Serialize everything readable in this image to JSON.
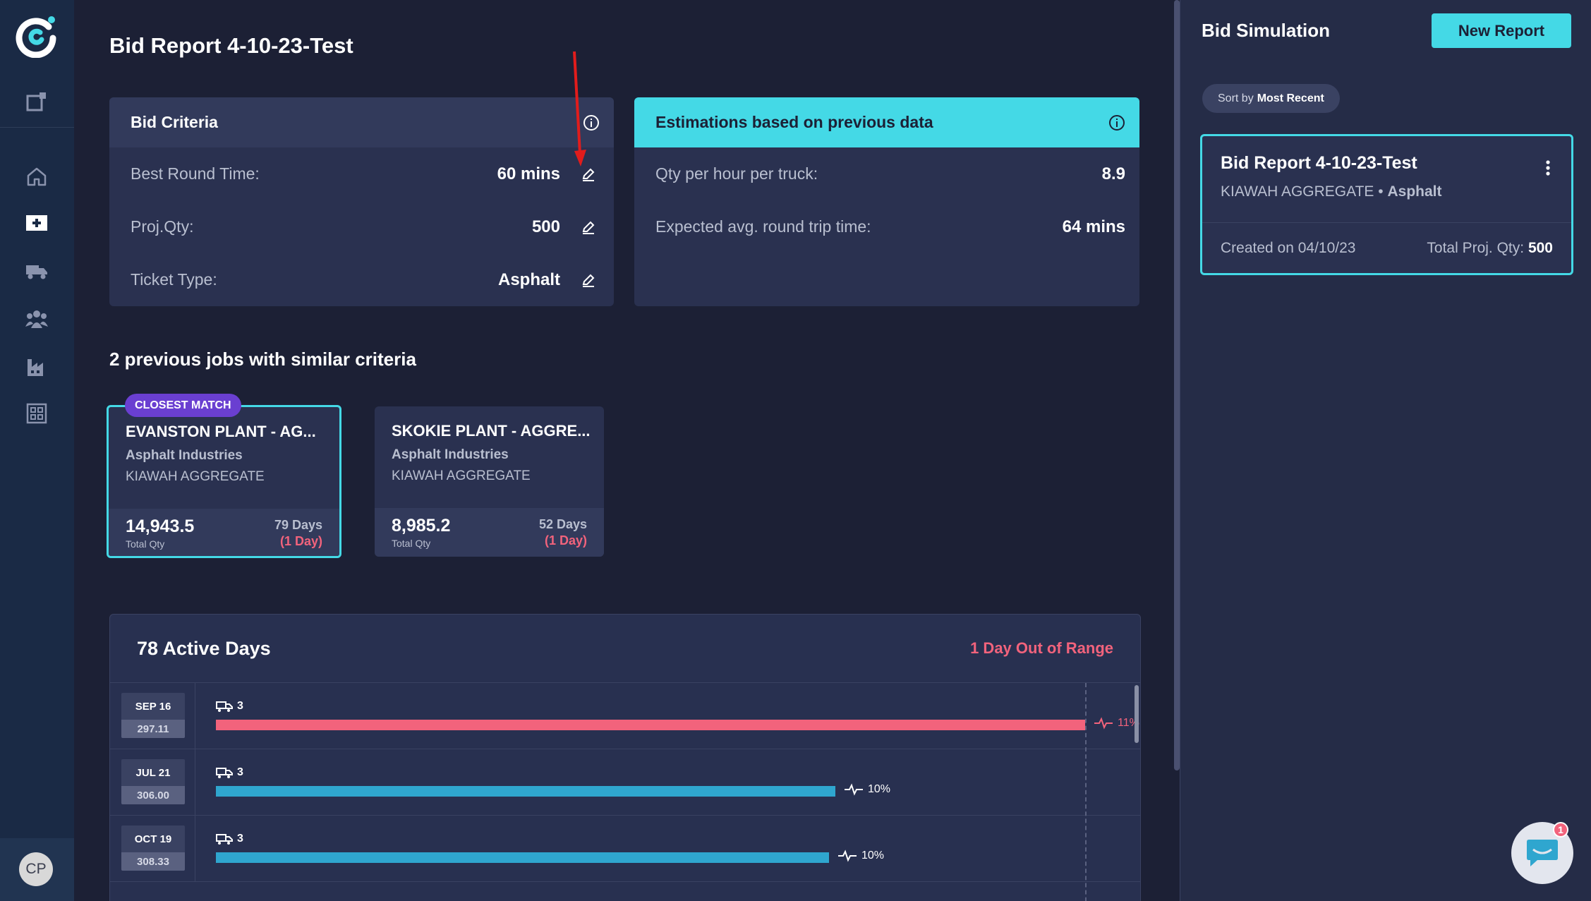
{
  "page_title": "Bid Report 4-10-23-Test",
  "sidebar": {
    "avatar_initials": "CP",
    "icons": [
      "new-report-icon",
      "home-icon",
      "bid-icon",
      "truck-icon",
      "team-icon",
      "factory-icon",
      "grid-icon"
    ]
  },
  "bid_criteria": {
    "title": "Bid Criteria",
    "rows": [
      {
        "label": "Best Round Time:",
        "value": "60 mins"
      },
      {
        "label": "Proj.Qty:",
        "value": "500"
      },
      {
        "label": "Ticket Type:",
        "value": "Asphalt"
      }
    ]
  },
  "estimations": {
    "title": "Estimations based on previous data",
    "rows": [
      {
        "label": "Qty per hour per truck:",
        "value": "8.9"
      },
      {
        "label": "Expected avg. round trip time:",
        "value": "64 mins"
      }
    ]
  },
  "similar_jobs": {
    "title": "2 previous jobs with similar criteria",
    "badge": "CLOSEST MATCH",
    "jobs": [
      {
        "name": "EVANSTON PLANT - AG...",
        "company": "Asphalt Industries",
        "aggregate": "KIAWAH AGGREGATE",
        "qty": "14,943.5",
        "qty_label": "Total Qty",
        "days": "79 Days",
        "range": "(1 Day)"
      },
      {
        "name": "SKOKIE PLANT - AGGRE...",
        "company": "Asphalt Industries",
        "aggregate": "KIAWAH AGGREGATE",
        "qty": "8,985.2",
        "qty_label": "Total Qty",
        "days": "52 Days",
        "range": "(1 Day)"
      }
    ]
  },
  "active_days": {
    "title": "78 Active Days",
    "out_of_range": "1 Day Out of Range",
    "rows": [
      {
        "date": "SEP 16",
        "qty": "297.11",
        "trucks": "3",
        "pct": "11%",
        "fill": 1.0,
        "color": "#f2637c"
      },
      {
        "date": "JUL 21",
        "qty": "306.00",
        "trucks": "3",
        "pct": "10%",
        "fill": 0.713,
        "color": "#2fa6cf"
      },
      {
        "date": "OCT 19",
        "qty": "308.33",
        "trucks": "3",
        "pct": "10%",
        "fill": 0.705,
        "color": "#2fa6cf"
      }
    ]
  },
  "right_panel": {
    "title": "Bid Simulation",
    "new_report": "New Report",
    "sort_prefix": "Sort by",
    "sort_value": "Most Recent",
    "report": {
      "title": "Bid Report 4-10-23-Test",
      "aggregate": "KIAWAH AGGREGATE",
      "separator": "•",
      "ticket": "Asphalt",
      "created": "Created on 04/10/23",
      "proj_label": "Total Proj. Qty:",
      "proj_value": "500"
    },
    "chat_badge": "1"
  },
  "colors": {
    "accent": "#44d9e6",
    "danger": "#f2637c",
    "bar_blue": "#2fa6cf",
    "badge_purple": "#6a3fd1"
  }
}
